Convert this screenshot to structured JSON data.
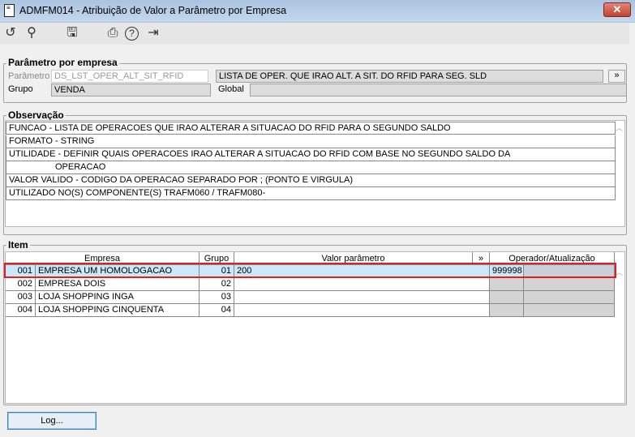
{
  "window": {
    "title": "ADMFM014 - Atribuição de Valor a Parâmetro por Empresa",
    "close": "✕"
  },
  "toolbar": [
    {
      "icon": "undo-icon",
      "glyph": "↺"
    },
    {
      "icon": "search-icon",
      "glyph": "⚲"
    },
    {
      "icon": "save-icon",
      "glyph": "🖫"
    },
    {
      "icon": "print-icon",
      "glyph": "⎙"
    },
    {
      "icon": "help-icon",
      "glyph": "?"
    },
    {
      "icon": "exit-icon",
      "glyph": "⇥"
    }
  ],
  "param": {
    "legend": "Parâmetro por empresa",
    "param_label": "Parâmetro",
    "param_value": "DS_LST_OPER_ALT_SIT_RFID",
    "description": "LISTA DE OPER. QUE IRAO ALT. A SIT. DO RFID PARA SEG. SLD",
    "more": "»",
    "grupo_label": "Grupo",
    "grupo_value": "VENDA",
    "global_label": "Global",
    "global_value": ""
  },
  "obs": {
    "legend": "Observação",
    "lines": [
      "FUNCAO - LISTA DE OPERACOES QUE IRAO ALTERAR A SITUACAO DO RFID PARA O SEGUNDO SALDO",
      "FORMATO - STRING",
      "UTILIDADE - DEFINIR QUAIS OPERACOES IRAO ALTERAR A SITUACAO DO RFID COM BASE NO SEGUNDO SALDO DA",
      "OPERACAO",
      "VALOR VALIDO - CODIGO DA OPERACAO SEPARADO POR ; (PONTO E VIRGULA)",
      "UTILIZADO NO(S) COMPONENTE(S) TRAFM060 / TRAFM080-"
    ]
  },
  "item": {
    "legend": "Item",
    "headers": {
      "empresa": "Empresa",
      "grupo": "Grupo",
      "valor": "Valor parâmetro",
      "more": "»",
      "operador": "Operador/Atualização"
    },
    "rows": [
      {
        "code": "001",
        "empresa": "EMPRESA UM HOMOLOGACAO",
        "grupo": "01",
        "valor": "200",
        "operador": "999998",
        "atualizacao": ""
      },
      {
        "code": "002",
        "empresa": "EMPRESA DOIS",
        "grupo": "02",
        "valor": "",
        "operador": "",
        "atualizacao": ""
      },
      {
        "code": "003",
        "empresa": "LOJA SHOPPING INGA",
        "grupo": "03",
        "valor": "",
        "operador": "",
        "atualizacao": ""
      },
      {
        "code": "004",
        "empresa": "LOJA SHOPPING CINQUENTA",
        "grupo": "04",
        "valor": "",
        "operador": "",
        "atualizacao": ""
      }
    ],
    "selected_row": 0,
    "highlight_color": "#e02020",
    "selected_bg": "#cce8f8"
  },
  "footer": {
    "log": "Log..."
  }
}
